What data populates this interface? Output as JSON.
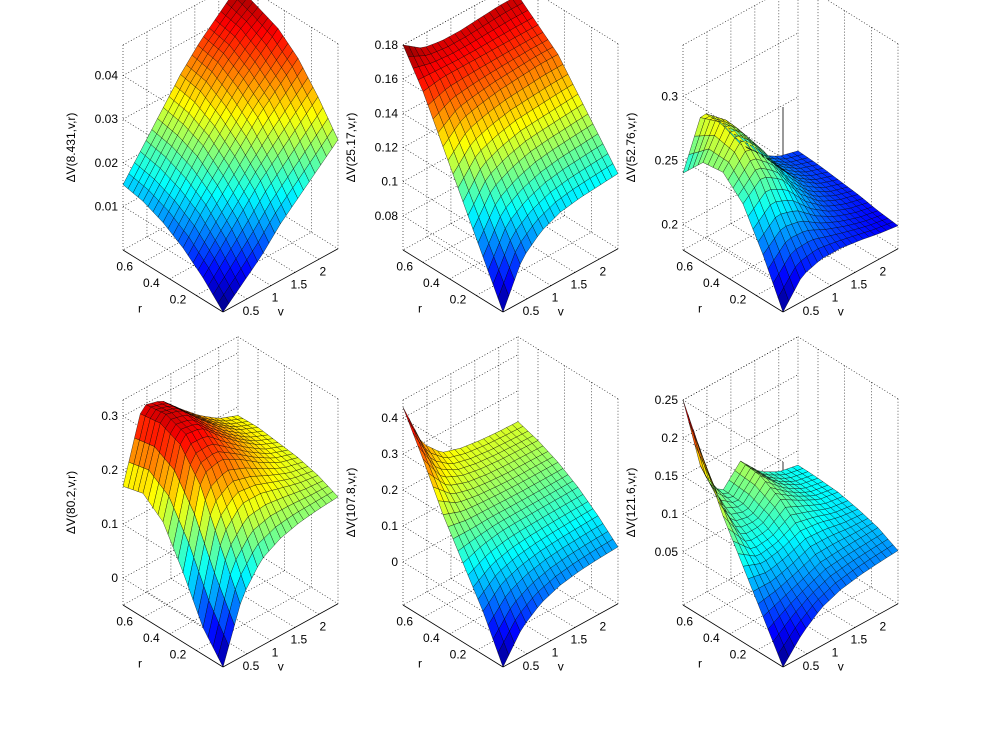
{
  "figure": {
    "background": "#ffffff",
    "colormap": "jet",
    "edge_color": "#000000"
  },
  "chart_data": [
    {
      "type": "surface",
      "zlabel": "ΔV(8.431,v,r)",
      "xlabel": "v",
      "ylabel": "r",
      "xticks": [
        "0.5",
        "1",
        "1.5",
        "2"
      ],
      "yticks": [
        "0.2",
        "0.4",
        "0.6"
      ],
      "zticks": [
        "0.01",
        "0.02",
        "0.03",
        "0.04"
      ],
      "xlim": [
        0,
        2.4
      ],
      "ylim": [
        0,
        0.75
      ],
      "zlim": [
        0,
        0.047
      ],
      "grid": [
        [
          0.0,
          0.004,
          0.008,
          0.013,
          0.017,
          0.021,
          0.025
        ],
        [
          0.005,
          0.01,
          0.015,
          0.02,
          0.024,
          0.028,
          0.032
        ],
        [
          0.009,
          0.015,
          0.02,
          0.025,
          0.03,
          0.034,
          0.038
        ],
        [
          0.012,
          0.018,
          0.024,
          0.029,
          0.034,
          0.038,
          0.042
        ],
        [
          0.014,
          0.02,
          0.026,
          0.032,
          0.037,
          0.041,
          0.044
        ],
        [
          0.015,
          0.021,
          0.027,
          0.033,
          0.038,
          0.042,
          0.046
        ]
      ]
    },
    {
      "type": "surface",
      "zlabel": "ΔV(25.17,v,r)",
      "xlabel": "v",
      "ylabel": "r",
      "xticks": [
        "0.5",
        "1",
        "1.5",
        "2"
      ],
      "yticks": [
        "0.2",
        "0.4",
        "0.6"
      ],
      "zticks": [
        "0.08",
        "0.1",
        "0.12",
        "0.14",
        "0.16",
        "0.18"
      ],
      "xlim": [
        0,
        2.4
      ],
      "ylim": [
        0,
        0.75
      ],
      "zlim": [
        0.06,
        0.18
      ],
      "grid": [
        [
          0.06,
          0.085,
          0.095,
          0.1,
          0.102,
          0.103,
          0.104
        ],
        [
          0.085,
          0.105,
          0.112,
          0.116,
          0.118,
          0.119,
          0.12
        ],
        [
          0.11,
          0.125,
          0.13,
          0.133,
          0.134,
          0.135,
          0.136
        ],
        [
          0.135,
          0.145,
          0.148,
          0.15,
          0.151,
          0.152,
          0.152
        ],
        [
          0.16,
          0.162,
          0.162,
          0.162,
          0.162,
          0.162,
          0.162
        ],
        [
          0.18,
          0.172,
          0.17,
          0.17,
          0.171,
          0.172,
          0.172
        ]
      ]
    },
    {
      "type": "surface",
      "zlabel": "ΔV(52.76,v,r)",
      "xlabel": "v",
      "ylabel": "r",
      "xticks": [
        "0.5",
        "1",
        "1.5",
        "2"
      ],
      "yticks": [
        "0.2",
        "0.4",
        "0.6"
      ],
      "zticks": [
        "0.2",
        "0.25",
        "0.3"
      ],
      "xlim": [
        0,
        2.4
      ],
      "ylim": [
        0,
        0.75
      ],
      "zlim": [
        0.18,
        0.34
      ],
      "grid": [
        [
          0.18,
          0.2,
          0.205,
          0.205,
          0.203,
          0.2,
          0.198
        ],
        [
          0.215,
          0.228,
          0.225,
          0.215,
          0.208,
          0.203,
          0.2
        ],
        [
          0.245,
          0.258,
          0.248,
          0.228,
          0.214,
          0.207,
          0.203
        ],
        [
          0.26,
          0.278,
          0.262,
          0.238,
          0.22,
          0.21,
          0.205
        ],
        [
          0.258,
          0.285,
          0.266,
          0.24,
          0.222,
          0.212,
          0.207
        ],
        [
          0.24,
          0.28,
          0.262,
          0.238,
          0.221,
          0.212,
          0.208
        ]
      ]
    },
    {
      "type": "surface",
      "zlabel": "ΔV(80.2,v,r)",
      "xlabel": "v",
      "ylabel": "r",
      "xticks": [
        "0.5",
        "1",
        "1.5",
        "2"
      ],
      "yticks": [
        "0.2",
        "0.4",
        "0.6"
      ],
      "zticks": [
        "0",
        "0.1",
        "0.2",
        "0.3"
      ],
      "xlim": [
        0,
        2.4
      ],
      "ylim": [
        0,
        0.75
      ],
      "zlim": [
        -0.05,
        0.33
      ],
      "grid": [
        [
          -0.05,
          0.06,
          0.11,
          0.13,
          0.14,
          0.145,
          0.148
        ],
        [
          0.0,
          0.15,
          0.19,
          0.19,
          0.18,
          0.17,
          0.165
        ],
        [
          0.08,
          0.24,
          0.25,
          0.23,
          0.205,
          0.185,
          0.175
        ],
        [
          0.15,
          0.29,
          0.285,
          0.25,
          0.22,
          0.195,
          0.18
        ],
        [
          0.18,
          0.305,
          0.295,
          0.258,
          0.225,
          0.2,
          0.185
        ],
        [
          0.17,
          0.3,
          0.29,
          0.255,
          0.223,
          0.198,
          0.184
        ]
      ]
    },
    {
      "type": "surface",
      "zlabel": "ΔV(107.8,v,r)",
      "xlabel": "v",
      "ylabel": "r",
      "xticks": [
        "0.5",
        "1",
        "1.5",
        "2"
      ],
      "yticks": [
        "0.2",
        "0.4",
        "0.6"
      ],
      "zticks": [
        "0",
        "0.1",
        "0.2",
        "0.3",
        "0.4"
      ],
      "xlim": [
        0,
        2.4
      ],
      "ylim": [
        0,
        0.75
      ],
      "zlim": [
        -0.12,
        0.45
      ],
      "grid": [
        [
          -0.12,
          -0.04,
          0.0,
          0.02,
          0.03,
          0.035,
          0.038
        ],
        [
          0.0,
          0.05,
          0.07,
          0.08,
          0.085,
          0.088,
          0.09
        ],
        [
          0.1,
          0.12,
          0.13,
          0.132,
          0.133,
          0.134,
          0.135
        ],
        [
          0.2,
          0.18,
          0.175,
          0.172,
          0.17,
          0.17,
          0.17
        ],
        [
          0.32,
          0.24,
          0.215,
          0.205,
          0.2,
          0.198,
          0.196
        ],
        [
          0.43,
          0.3,
          0.245,
          0.228,
          0.22,
          0.216,
          0.214
        ]
      ]
    },
    {
      "type": "surface",
      "zlabel": "ΔV(121.6,v,r)",
      "xlabel": "v",
      "ylabel": "r",
      "xticks": [
        "0.5",
        "1",
        "1.5",
        "2"
      ],
      "yticks": [
        "0.2",
        "0.4",
        "0.6"
      ],
      "zticks": [
        "0.05",
        "0.1",
        "0.15",
        "0.2",
        "0.25"
      ],
      "xlim": [
        0,
        2.4
      ],
      "ylim": [
        0,
        0.75
      ],
      "zlim": [
        -0.02,
        0.25
      ],
      "grid": [
        [
          -0.02,
          0.01,
          0.03,
          0.04,
          0.045,
          0.048,
          0.05
        ],
        [
          0.03,
          0.04,
          0.05,
          0.06,
          0.062,
          0.063,
          0.064
        ],
        [
          0.08,
          0.07,
          0.075,
          0.085,
          0.082,
          0.075,
          0.072
        ],
        [
          0.13,
          0.09,
          0.09,
          0.11,
          0.095,
          0.082,
          0.078
        ],
        [
          0.19,
          0.11,
          0.098,
          0.125,
          0.1,
          0.085,
          0.08
        ],
        [
          0.25,
          0.14,
          0.1,
          0.128,
          0.1,
          0.086,
          0.081
        ]
      ]
    }
  ]
}
